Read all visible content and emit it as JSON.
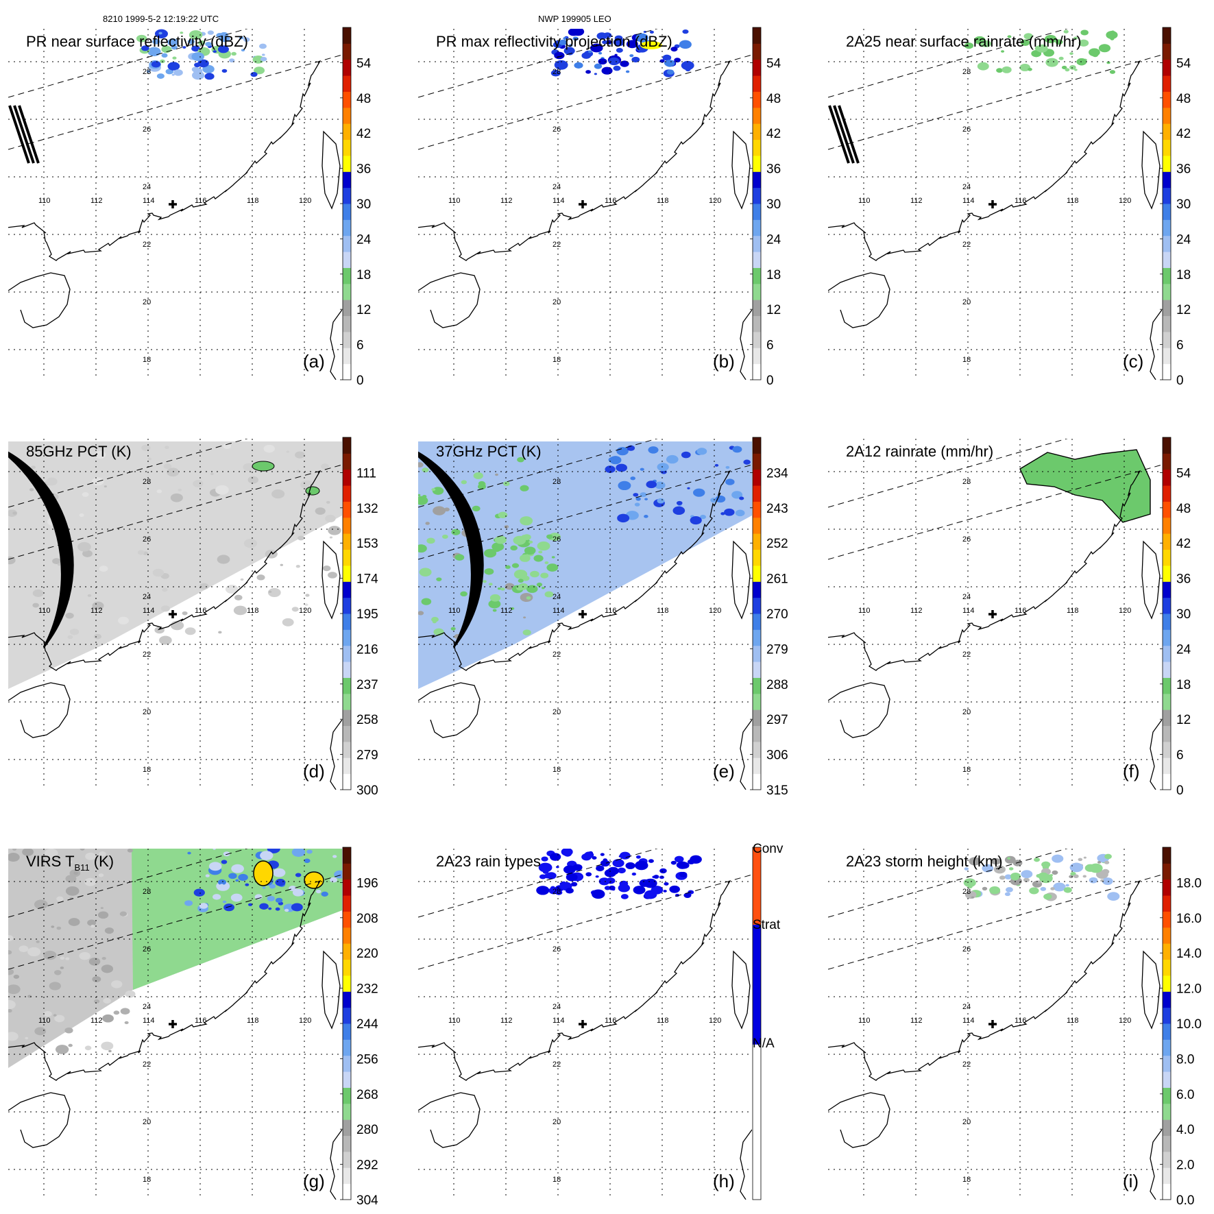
{
  "header": {
    "left": "8210 1999-5-2 12:19:22 UTC",
    "center": "NWP 199905 LEO"
  },
  "lon_labels": [
    "110",
    "112",
    "114",
    "116",
    "118",
    "120"
  ],
  "lat_labels": [
    "28",
    "26",
    "24",
    "22",
    "20",
    "18"
  ],
  "colors": {
    "ramp": [
      "#ffffff",
      "#e8e8e8",
      "#d0d0d0",
      "#b8b8b8",
      "#a0a0a0",
      "#8fd98f",
      "#6cc96c",
      "#c8d6f5",
      "#9fbff2",
      "#6ea6ef",
      "#3f7fe8",
      "#1e3fe0",
      "#0000cc",
      "#ffff00",
      "#ffd700",
      "#ffb000",
      "#ff8000",
      "#ff5000",
      "#e02000",
      "#b00000",
      "#7a1a00",
      "#4a1000"
    ],
    "rain_types": [
      "#ffffff",
      "#0000e0",
      "#ff5010"
    ],
    "land": "#000000",
    "swath_fill": "#dddddd"
  },
  "panels": [
    {
      "id": "a",
      "title": "PR near surface reflectivity (dBZ)",
      "letter": "(a)",
      "ticks": [
        "0",
        "6",
        "12",
        "18",
        "24",
        "30",
        "36",
        "42",
        "48",
        "54"
      ],
      "swath": "pr"
    },
    {
      "id": "b",
      "title": "PR max reflectivity projection (dBZ)",
      "letter": "(b)",
      "ticks": [
        "0",
        "6",
        "12",
        "18",
        "24",
        "30",
        "36",
        "42",
        "48",
        "54"
      ],
      "swath": "pr"
    },
    {
      "id": "c",
      "title": "2A25 near surface rainrate (mm/hr)",
      "letter": "(c)",
      "ticks": [
        "0",
        "6",
        "12",
        "18",
        "24",
        "30",
        "36",
        "42",
        "48",
        "54"
      ],
      "swath": "pr"
    },
    {
      "id": "d",
      "title": "85GHz PCT (K)",
      "letter": "(d)",
      "ticks": [
        "300",
        "279",
        "258",
        "237",
        "216",
        "195",
        "174",
        "153",
        "132",
        "111"
      ],
      "swath": "tmi"
    },
    {
      "id": "e",
      "title": "37GHz PCT (K)",
      "letter": "(e)",
      "ticks": [
        "315",
        "306",
        "297",
        "288",
        "279",
        "270",
        "261",
        "252",
        "243",
        "234"
      ],
      "swath": "tmi"
    },
    {
      "id": "f",
      "title": "2A12 rainrate (mm/hr)",
      "letter": "(f)",
      "ticks": [
        "0",
        "6",
        "12",
        "18",
        "24",
        "30",
        "36",
        "42",
        "48",
        "54"
      ],
      "swath": "none"
    },
    {
      "id": "g",
      "title": "VIRS T",
      "title_sub": "B11",
      "title_end": " (K)",
      "letter": "(g)",
      "ticks": [
        "304",
        "292",
        "280",
        "268",
        "256",
        "244",
        "232",
        "220",
        "208",
        "196"
      ],
      "swath": "virs"
    },
    {
      "id": "h",
      "title": "2A23 rain types",
      "letter": "(h)",
      "ticks": [
        "N/A",
        "Strat",
        "Conv"
      ],
      "swath": "types"
    },
    {
      "id": "i",
      "title": "2A23 storm height (km)",
      "letter": "(i)",
      "ticks": [
        "0.0",
        "2.0",
        "4.0",
        "6.0",
        "8.0",
        "10.0",
        "12.0",
        "14.0",
        "16.0",
        "18.0"
      ],
      "swath": "height"
    }
  ]
}
